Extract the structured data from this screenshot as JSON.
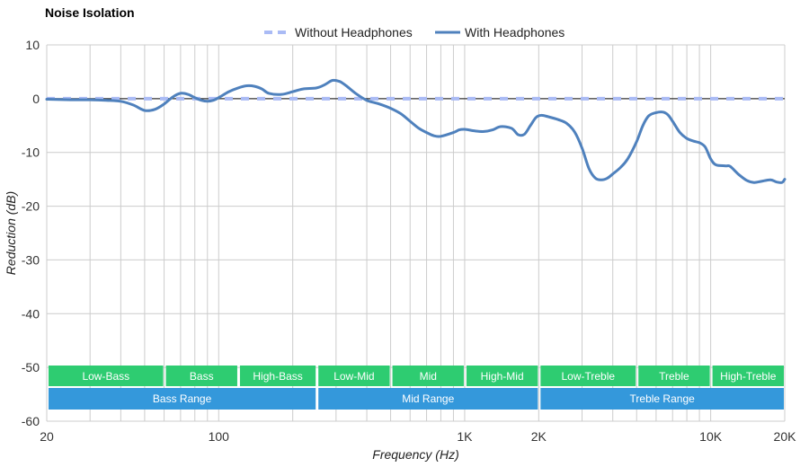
{
  "chart_data": {
    "type": "line",
    "title": "Noise Isolation",
    "xlabel": "Frequency (Hz)",
    "ylabel": "Reduction (dB)",
    "xscale": "log",
    "xlim": [
      20,
      20000
    ],
    "ylim": [
      -60,
      10
    ],
    "y_ticks": [
      10,
      0,
      -10,
      -20,
      -30,
      -40,
      -50,
      -60
    ],
    "x_tick_labels": [
      {
        "value": 20,
        "label": "20"
      },
      {
        "value": 100,
        "label": "100"
      },
      {
        "value": 1000,
        "label": "1K"
      },
      {
        "value": 2000,
        "label": "2K"
      },
      {
        "value": 10000,
        "label": "10K"
      },
      {
        "value": 20000,
        "label": "20K"
      }
    ],
    "legend": {
      "placement": "top-center",
      "items": [
        "Without Headphones",
        "With Headphones"
      ]
    },
    "series": [
      {
        "name": "Without Headphones",
        "style": "dashed",
        "color": "#aabbf5",
        "points": [
          [
            20,
            0
          ],
          [
            20000,
            0
          ]
        ]
      },
      {
        "name": "With Headphones",
        "style": "solid",
        "color": "#4f81bd",
        "points": [
          [
            20,
            -0.1
          ],
          [
            25,
            -0.2
          ],
          [
            30,
            -0.2
          ],
          [
            35,
            -0.3
          ],
          [
            40,
            -0.5
          ],
          [
            45,
            -1.2
          ],
          [
            50,
            -2.2
          ],
          [
            55,
            -2.0
          ],
          [
            60,
            -1.0
          ],
          [
            65,
            0.3
          ],
          [
            70,
            1.0
          ],
          [
            75,
            0.8
          ],
          [
            80,
            0.2
          ],
          [
            85,
            -0.3
          ],
          [
            90,
            -0.5
          ],
          [
            95,
            -0.3
          ],
          [
            100,
            0.2
          ],
          [
            110,
            1.3
          ],
          [
            120,
            2.0
          ],
          [
            130,
            2.4
          ],
          [
            140,
            2.3
          ],
          [
            150,
            1.8
          ],
          [
            160,
            1.0
          ],
          [
            180,
            0.8
          ],
          [
            200,
            1.3
          ],
          [
            220,
            1.8
          ],
          [
            250,
            2.0
          ],
          [
            270,
            2.6
          ],
          [
            290,
            3.4
          ],
          [
            310,
            3.2
          ],
          [
            330,
            2.4
          ],
          [
            360,
            1.0
          ],
          [
            400,
            -0.3
          ],
          [
            450,
            -1.0
          ],
          [
            500,
            -1.8
          ],
          [
            550,
            -2.8
          ],
          [
            600,
            -4.2
          ],
          [
            650,
            -5.5
          ],
          [
            700,
            -6.3
          ],
          [
            750,
            -6.9
          ],
          [
            800,
            -7.0
          ],
          [
            900,
            -6.3
          ],
          [
            950,
            -5.8
          ],
          [
            1000,
            -5.7
          ],
          [
            1100,
            -6.0
          ],
          [
            1200,
            -6.1
          ],
          [
            1300,
            -5.8
          ],
          [
            1400,
            -5.2
          ],
          [
            1550,
            -5.5
          ],
          [
            1650,
            -6.7
          ],
          [
            1750,
            -6.6
          ],
          [
            1850,
            -5.0
          ],
          [
            1950,
            -3.5
          ],
          [
            2050,
            -3.1
          ],
          [
            2200,
            -3.4
          ],
          [
            2400,
            -3.9
          ],
          [
            2600,
            -4.6
          ],
          [
            2800,
            -6.2
          ],
          [
            3000,
            -9.2
          ],
          [
            3200,
            -13.0
          ],
          [
            3400,
            -14.8
          ],
          [
            3600,
            -15.1
          ],
          [
            3800,
            -14.8
          ],
          [
            4000,
            -14.0
          ],
          [
            4300,
            -12.8
          ],
          [
            4600,
            -11.2
          ],
          [
            5000,
            -8.0
          ],
          [
            5300,
            -5.0
          ],
          [
            5600,
            -3.2
          ],
          [
            6000,
            -2.6
          ],
          [
            6400,
            -2.5
          ],
          [
            6700,
            -3.0
          ],
          [
            7000,
            -4.2
          ],
          [
            7500,
            -6.3
          ],
          [
            8000,
            -7.4
          ],
          [
            8500,
            -7.9
          ],
          [
            9000,
            -8.2
          ],
          [
            9500,
            -9.0
          ],
          [
            10000,
            -11.2
          ],
          [
            10500,
            -12.3
          ],
          [
            11500,
            -12.5
          ],
          [
            12000,
            -12.6
          ],
          [
            13000,
            -14.1
          ],
          [
            14000,
            -15.2
          ],
          [
            15000,
            -15.6
          ],
          [
            16000,
            -15.4
          ],
          [
            17500,
            -15.1
          ],
          [
            18500,
            -15.5
          ],
          [
            19500,
            -15.6
          ],
          [
            20000,
            -15.0
          ]
        ]
      }
    ],
    "range_bands": [
      {
        "label": "Low-Bass",
        "from": 20,
        "to": 60
      },
      {
        "label": "Bass",
        "from": 60,
        "to": 120
      },
      {
        "label": "High-Bass",
        "from": 120,
        "to": 250
      },
      {
        "label": "Low-Mid",
        "from": 250,
        "to": 500
      },
      {
        "label": "Mid",
        "from": 500,
        "to": 1000
      },
      {
        "label": "High-Mid",
        "from": 1000,
        "to": 2000
      },
      {
        "label": "Low-Treble",
        "from": 2000,
        "to": 5000
      },
      {
        "label": "Treble",
        "from": 5000,
        "to": 10000
      },
      {
        "label": "High-Treble",
        "from": 10000,
        "to": 20000
      }
    ],
    "range_groups": [
      {
        "label": "Bass Range",
        "from": 20,
        "to": 250
      },
      {
        "label": "Mid Range",
        "from": 250,
        "to": 2000
      },
      {
        "label": "Treble Range",
        "from": 2000,
        "to": 20000
      }
    ],
    "colors": {
      "band": "#2ecc71",
      "group": "#3498db",
      "grid": "#cccccc",
      "zero_line": "#333333"
    }
  }
}
